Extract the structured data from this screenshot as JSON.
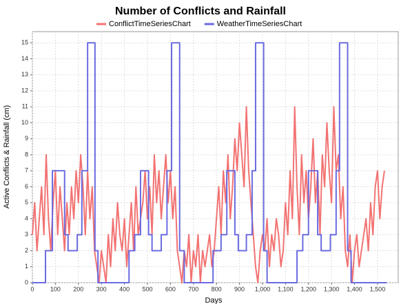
{
  "chart_data": {
    "type": "line",
    "title": "Number of Conflicts and Rainfall",
    "x_label": "Days",
    "y_label": "Active Conflicts & Rainfall (cm)",
    "xlim": [
      0,
      1590
    ],
    "ylim": [
      0,
      15.7
    ],
    "xticks": [
      0,
      100,
      200,
      300,
      400,
      500,
      600,
      700,
      800,
      900,
      {
        "value": 1000,
        "label": "1,000"
      },
      {
        "value": 1100,
        "label": "1,100"
      },
      {
        "value": 1200,
        "label": "1,200"
      },
      {
        "value": 1300,
        "label": "1,300"
      },
      {
        "value": 1400,
        "label": "1,400"
      },
      {
        "value": 1500,
        "label": "1,500"
      }
    ],
    "yticks": [
      0,
      1,
      2,
      3,
      4,
      5,
      6,
      7,
      8,
      9,
      10,
      11,
      12,
      13,
      14,
      15
    ],
    "grid": true,
    "legend": "top",
    "series": [
      {
        "name": "ConflictTimeSeriesChart",
        "color": "#f27272",
        "step": false,
        "x": [
          0,
          10,
          20,
          30,
          40,
          50,
          60,
          70,
          80,
          90,
          100,
          110,
          120,
          130,
          140,
          150,
          160,
          170,
          180,
          190,
          200,
          210,
          220,
          230,
          240,
          250,
          260,
          270,
          280,
          290,
          300,
          310,
          320,
          330,
          340,
          350,
          360,
          370,
          380,
          390,
          400,
          410,
          420,
          430,
          440,
          450,
          460,
          470,
          480,
          490,
          500,
          510,
          520,
          530,
          540,
          550,
          560,
          570,
          580,
          590,
          600,
          610,
          620,
          630,
          640,
          650,
          660,
          670,
          680,
          690,
          700,
          710,
          720,
          730,
          740,
          750,
          760,
          770,
          780,
          790,
          800,
          810,
          820,
          830,
          840,
          850,
          860,
          870,
          880,
          890,
          900,
          910,
          920,
          930,
          940,
          950,
          960,
          970,
          980,
          990,
          1000,
          1010,
          1020,
          1030,
          1040,
          1050,
          1060,
          1070,
          1080,
          1090,
          1100,
          1110,
          1120,
          1130,
          1140,
          1150,
          1160,
          1170,
          1180,
          1190,
          1200,
          1210,
          1220,
          1230,
          1240,
          1250,
          1260,
          1270,
          1280,
          1290,
          1300,
          1310,
          1320,
          1330,
          1340,
          1350,
          1360,
          1370,
          1380,
          1390,
          1400,
          1410,
          1420,
          1430,
          1440,
          1450,
          1460,
          1470,
          1480,
          1490,
          1500,
          1510,
          1520,
          1530
        ],
        "values": [
          3,
          5,
          2,
          4,
          6,
          3,
          8,
          4,
          2,
          5,
          7,
          3,
          6,
          4,
          2,
          5,
          3,
          6,
          4,
          7,
          5,
          8,
          6,
          3,
          7,
          4,
          6,
          2,
          1,
          0,
          2,
          1,
          0,
          3,
          1,
          4,
          2,
          5,
          3,
          2,
          4,
          1,
          3,
          5,
          2,
          6,
          3,
          4,
          5,
          7,
          4,
          6,
          3,
          8,
          5,
          7,
          4,
          6,
          8,
          5,
          7,
          4,
          6,
          2,
          1,
          0,
          2,
          1,
          3,
          0,
          2,
          1,
          3,
          0,
          2,
          1,
          2,
          3,
          1,
          2,
          4,
          6,
          3,
          7,
          5,
          8,
          4,
          6,
          9,
          7,
          10,
          8,
          6,
          11,
          7,
          5,
          3,
          1,
          0,
          2,
          3,
          2,
          4,
          1,
          3,
          2,
          4,
          3,
          1,
          2,
          5,
          3,
          7,
          4,
          11,
          6,
          3,
          8,
          5,
          7,
          4,
          6,
          9,
          5,
          7,
          3,
          8,
          6,
          10,
          7,
          5,
          11,
          7,
          8,
          4,
          6,
          2,
          1,
          3,
          0,
          2,
          3,
          1,
          2,
          3,
          4,
          2,
          5,
          3,
          6,
          7,
          4,
          6,
          7
        ]
      },
      {
        "name": "WeatherTimeSeriesChart",
        "color": "#6a6ae0",
        "step": true,
        "x": [
          0,
          57,
          87,
          140,
          155,
          195,
          215,
          240,
          272,
          285,
          420,
          445,
          470,
          505,
          520,
          560,
          585,
          605,
          640,
          660,
          785,
          820,
          845,
          880,
          895,
          930,
          955,
          970,
          1005,
          1020,
          1150,
          1175,
          1200,
          1240,
          1255,
          1295,
          1320,
          1335,
          1370,
          1385,
          1540
        ],
        "values": [
          0,
          2,
          7,
          3,
          2,
          3,
          7,
          15,
          2,
          0,
          2,
          3,
          7,
          3,
          2,
          3,
          7,
          15,
          2,
          0,
          2,
          3,
          7,
          3,
          2,
          3,
          7,
          15,
          2,
          0,
          2,
          3,
          7,
          3,
          2,
          3,
          7,
          15,
          2,
          0,
          0
        ]
      }
    ]
  }
}
